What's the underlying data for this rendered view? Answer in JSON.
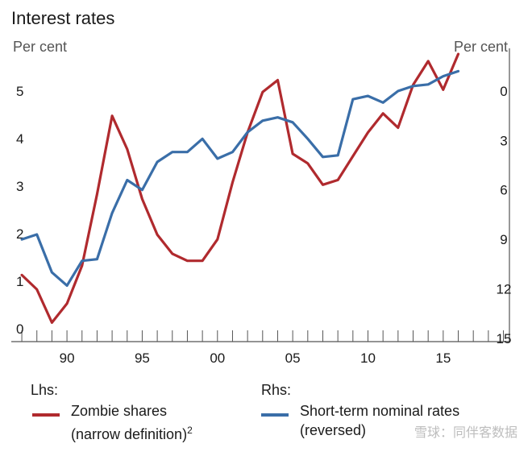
{
  "title": "Interest rates",
  "unit_left": "Per cent",
  "unit_right": "Per cent",
  "colors": {
    "zombie": "#b02a2e",
    "rates": "#3a6ea8",
    "axis": "#666666"
  },
  "chart_data": {
    "type": "line",
    "title": "Interest rates",
    "x_tick_labels": [
      "90",
      "95",
      "00",
      "05",
      "10",
      "15"
    ],
    "x_tick_values": [
      1990,
      1995,
      2000,
      2005,
      2010,
      2015
    ],
    "xlim": [
      1986.3,
      2019.4
    ],
    "y_left": {
      "label": "Per cent",
      "ticks": [
        "0",
        "1",
        "2",
        "3",
        "4",
        "5"
      ],
      "lim": [
        -0.1,
        5.9
      ]
    },
    "y_right": {
      "label": "Per cent",
      "reversed": true,
      "ticks": [
        "0",
        "3",
        "6",
        "9",
        "12",
        "15"
      ],
      "lim": [
        -2.1,
        15.2
      ]
    },
    "legend": {
      "lhs": "Lhs:",
      "rhs": "Rhs:",
      "series_labels": [
        {
          "line1": "Zombie shares",
          "line2": "(narrow definition)",
          "superscript": "2"
        },
        {
          "line1": "Short-term nominal rates",
          "line2": "(reversed)"
        }
      ]
    },
    "series": [
      {
        "name": "Zombie shares (narrow definition)",
        "axis": "left",
        "color": "#b02a2e",
        "x": [
          1987,
          1988,
          1989,
          1990,
          1991,
          1992,
          1993,
          1994,
          1995,
          1996,
          1997,
          1998,
          1999,
          2000,
          2001,
          2002,
          2003,
          2004,
          2005,
          2006,
          2007,
          2008,
          2009,
          2010,
          2011,
          2012,
          2013,
          2014,
          2015,
          2016
        ],
        "y": [
          1.3,
          1.0,
          0.3,
          0.7,
          1.5,
          3.0,
          4.65,
          3.95,
          2.9,
          2.15,
          1.75,
          1.6,
          1.6,
          2.05,
          3.25,
          4.3,
          5.15,
          5.4,
          3.85,
          3.65,
          3.2,
          3.3,
          3.8,
          4.3,
          4.7,
          4.4,
          5.3,
          5.8,
          5.2,
          5.95
        ]
      },
      {
        "name": "Short-term nominal rates (reversed)",
        "axis": "right",
        "color": "#3a6ea8",
        "x": [
          1987,
          1988,
          1989,
          1990,
          1991,
          1992,
          1993,
          1994,
          1995,
          1996,
          1997,
          1998,
          1999,
          2000,
          2001,
          2002,
          2003,
          2004,
          2005,
          2006,
          2007,
          2008,
          2009,
          2010,
          2011,
          2012,
          2013,
          2014,
          2015,
          2016
        ],
        "y": [
          9.0,
          8.7,
          11.0,
          11.8,
          10.3,
          10.2,
          7.4,
          5.4,
          6.0,
          4.3,
          3.7,
          3.7,
          2.9,
          4.1,
          3.7,
          2.5,
          1.8,
          1.6,
          1.9,
          2.9,
          4.0,
          3.9,
          0.5,
          0.3,
          0.7,
          0.0,
          -0.3,
          -0.4,
          -0.9,
          -1.2
        ]
      }
    ]
  },
  "watermark": "雪球：同伴客数据"
}
